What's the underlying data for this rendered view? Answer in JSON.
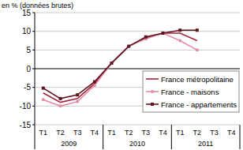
{
  "chart_data": {
    "type": "line",
    "y_label": "en % (données brutes)",
    "categories": [
      "T1",
      "T2",
      "T3",
      "T4",
      "T1",
      "T2",
      "T3",
      "T4",
      "T1",
      "T2",
      "T3",
      "T4"
    ],
    "groups": [
      "2009",
      "2010",
      "2011"
    ],
    "series": [
      {
        "name": "France métropolitaine",
        "color": "#a3243b",
        "marker": "none",
        "values": [
          -6.5,
          -9,
          -8,
          -4,
          1.5,
          6,
          8.2,
          9.5,
          9.5,
          7.5,
          null,
          null
        ]
      },
      {
        "name": "France - maisons",
        "color": "#e58aa5",
        "marker": "circle",
        "values": [
          -8.3,
          -10,
          -8.8,
          -4.5,
          1.5,
          6,
          8,
          9.5,
          7.5,
          5,
          null,
          null
        ]
      },
      {
        "name": "France - appartements",
        "color": "#5c1420",
        "marker": "square",
        "values": [
          -5.2,
          -8,
          -7,
          -3.5,
          1.5,
          6,
          8.5,
          9.5,
          10.3,
          10.3,
          null,
          null
        ]
      }
    ],
    "ylim": [
      -15,
      15
    ],
    "yticks": [
      -15,
      -10,
      -5,
      0,
      5,
      10,
      15
    ],
    "grid": true,
    "legend": "lower right"
  }
}
